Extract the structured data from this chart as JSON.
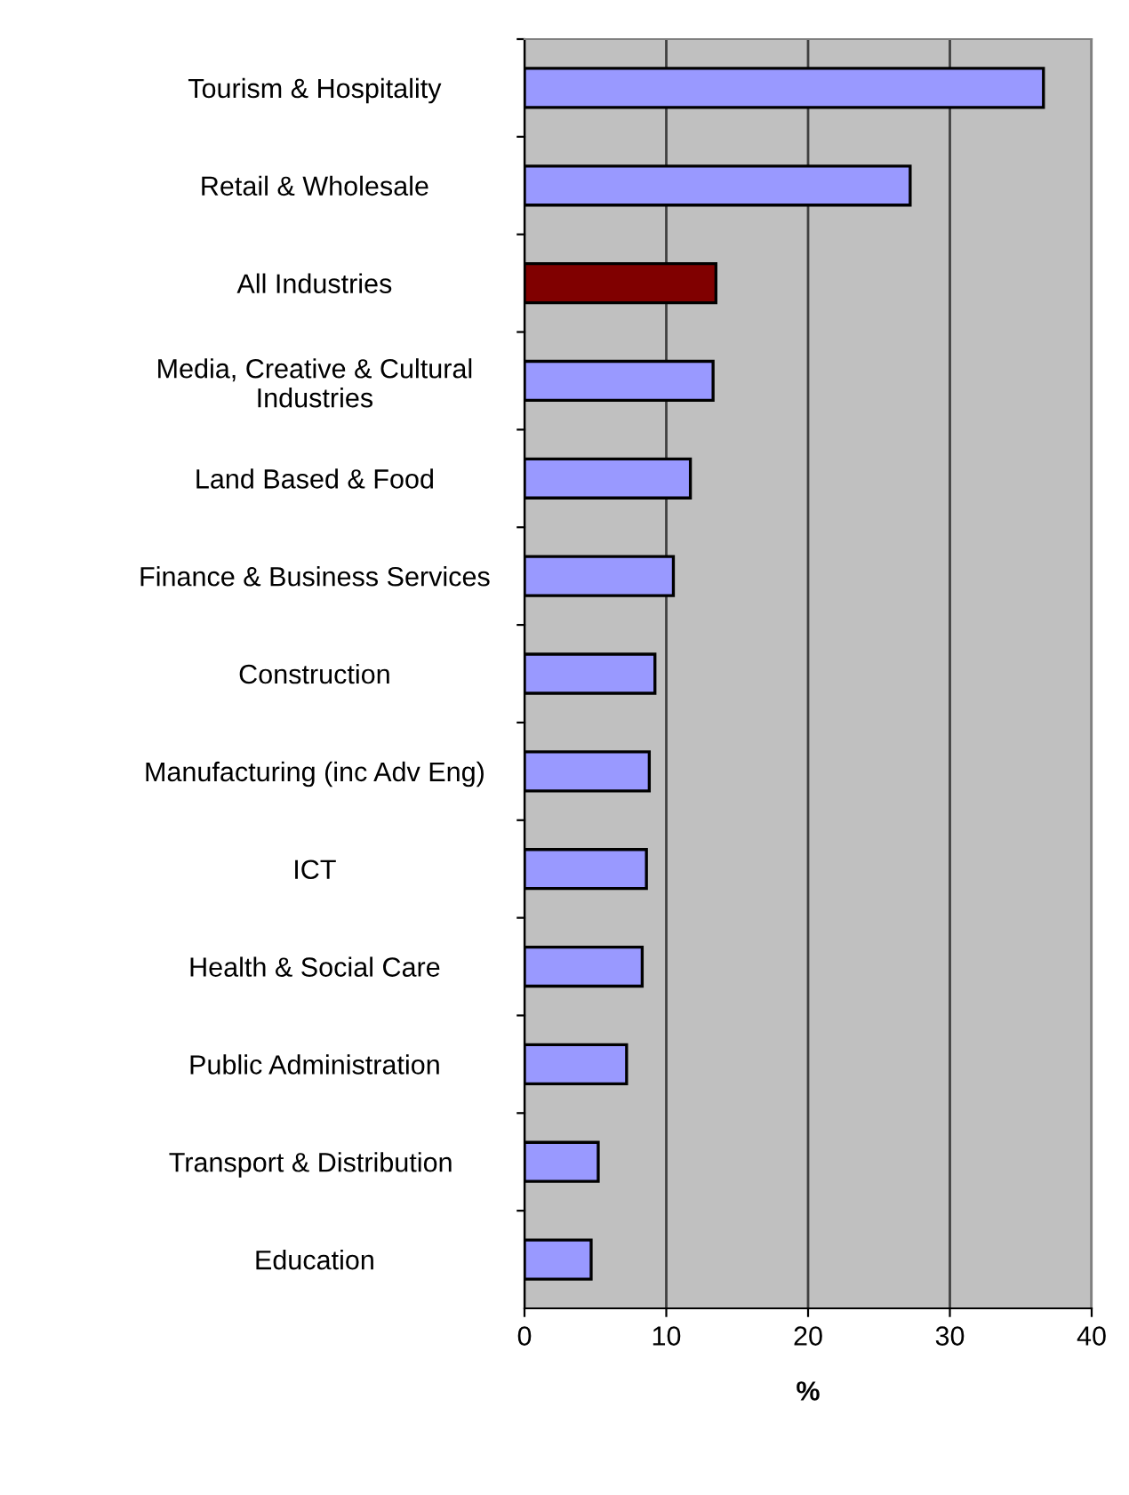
{
  "chart_data": {
    "type": "bar",
    "orientation": "horizontal",
    "xlabel": "%",
    "categories": [
      "Tourism & Hospitality",
      "Retail & Wholesale",
      "All Industries",
      "Media, Creative & Cultural\nIndustries",
      "Land Based & Food",
      "Finance & Business Services",
      "Construction",
      "Manufacturing (inc Adv Eng)",
      "ICT",
      "Health & Social Care",
      "Public Administration",
      "Transport & Distribution ",
      "Education"
    ],
    "values": [
      36.6,
      27.2,
      13.5,
      13.3,
      11.7,
      10.5,
      9.2,
      8.8,
      8.6,
      8.3,
      7.2,
      5.2,
      4.7
    ],
    "colors": [
      "#9999ff",
      "#9999ff",
      "#800000",
      "#9999ff",
      "#9999ff",
      "#9999ff",
      "#9999ff",
      "#9999ff",
      "#9999ff",
      "#9999ff",
      "#9999ff",
      "#9999ff",
      "#9999ff"
    ],
    "xlim": [
      0,
      40
    ],
    "xticks": [
      0,
      10,
      20,
      30,
      40
    ],
    "grid": "x",
    "legend": false
  }
}
